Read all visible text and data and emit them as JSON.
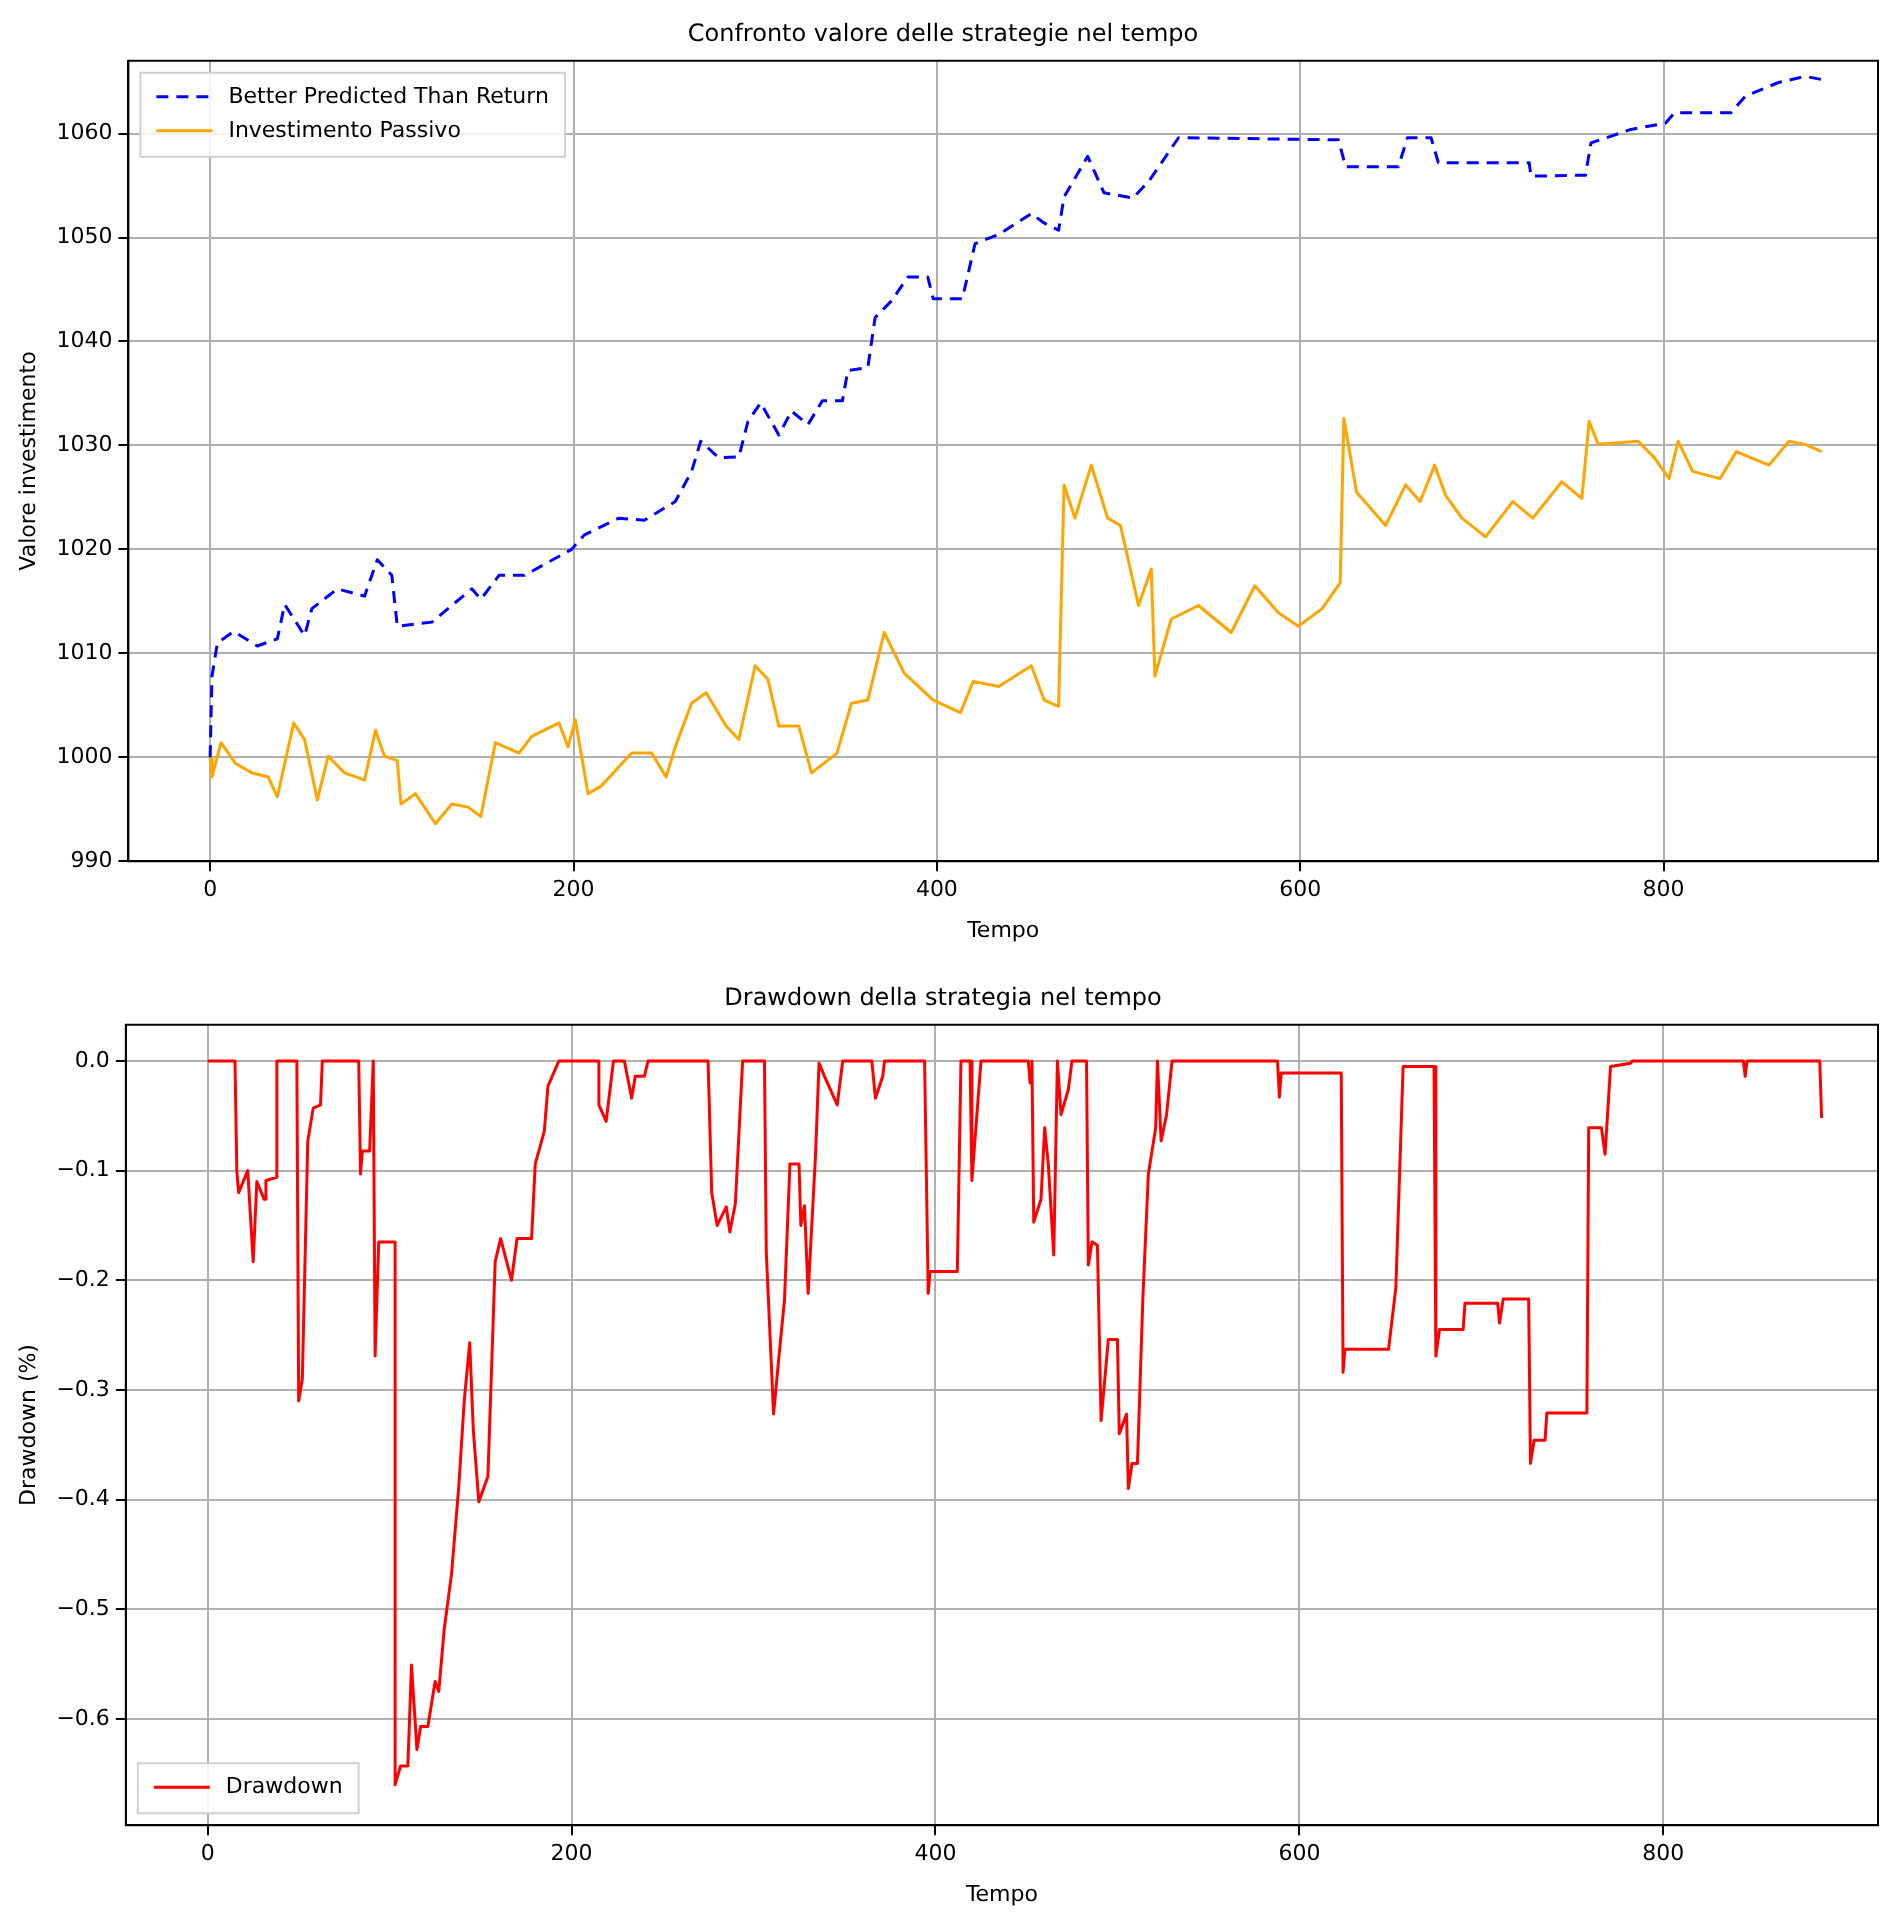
{
  "chart_data": [
    {
      "type": "line",
      "title": "Confronto valore delle strategie nel tempo",
      "xlabel": "Tempo",
      "ylabel": "Valore investimento",
      "xlim": [
        -45,
        918
      ],
      "xticks": [
        0,
        200,
        400,
        600,
        800
      ],
      "ylim": [
        990,
        1067
      ],
      "yticks": [
        990,
        1000,
        1010,
        1020,
        1030,
        1040,
        1050,
        1060
      ],
      "grid": true,
      "legend": "top left",
      "marker": "none",
      "series": [
        {
          "name": "Better Predicted Than Return",
          "color": "#0000ff",
          "line_style": "dashed",
          "x": [
            0,
            1,
            4,
            13,
            26,
            37,
            41,
            52,
            56,
            70,
            85,
            92,
            100,
            103,
            122,
            144,
            149,
            159,
            173,
            199,
            206,
            225,
            239,
            256,
            265,
            270,
            280,
            291,
            296,
            303,
            313,
            320,
            329,
            337,
            348,
            351,
            362,
            366,
            375,
            384,
            395,
            398,
            414,
            421,
            434,
            452,
            459,
            467,
            470,
            483,
            492,
            508,
            517,
            533,
            621,
            625,
            654,
            659,
            672,
            676,
            726,
            727,
            757,
            760,
            782,
            801,
            806,
            837,
            845,
            863,
            878,
            887
          ],
          "values": [
            1000,
            1007.8,
            1011,
            1012.1,
            1010.7,
            1011.4,
            1014.7,
            1011.7,
            1014.3,
            1016.2,
            1015.5,
            1019,
            1017.5,
            1012.6,
            1013,
            1016.2,
            1015.2,
            1017.5,
            1017.5,
            1020,
            1021.4,
            1023,
            1022.8,
            1024.6,
            1027.5,
            1030.4,
            1028.8,
            1028.9,
            1032.3,
            1034.1,
            1031,
            1033.3,
            1032,
            1034.3,
            1034.3,
            1037.2,
            1037.5,
            1042.3,
            1043.9,
            1046.2,
            1046.2,
            1044.1,
            1044.1,
            1049.4,
            1050.3,
            1052.3,
            1051.4,
            1050.7,
            1053.9,
            1057.8,
            1054.3,
            1053.8,
            1055.5,
            1059.6,
            1059.4,
            1056.8,
            1056.8,
            1059.6,
            1059.6,
            1057.2,
            1057.2,
            1055.9,
            1056,
            1059.1,
            1060.4,
            1061,
            1062,
            1062,
            1063.6,
            1064.9,
            1065.5,
            1065.2
          ]
        },
        {
          "name": "Investimento Passivo",
          "color": "#ffa500",
          "line_style": "solid",
          "x": [
            0,
            1,
            6,
            14,
            23,
            32,
            37,
            46,
            52,
            59,
            65,
            74,
            85,
            91,
            96,
            103,
            105,
            113,
            124,
            133,
            142,
            149,
            157,
            170,
            177,
            192,
            197,
            201,
            208,
            215,
            232,
            243,
            251,
            256,
            265,
            273,
            284,
            291,
            300,
            307,
            313,
            324,
            331,
            345,
            353,
            362,
            371,
            382,
            398,
            413,
            420,
            434,
            452,
            459,
            467,
            470,
            476,
            485,
            494,
            501,
            511,
            518,
            520,
            529,
            544,
            562,
            575,
            588,
            599,
            612,
            622,
            624,
            631,
            647,
            658,
            666,
            674,
            680,
            689,
            702,
            717,
            728,
            744,
            755,
            759,
            764,
            786,
            795,
            803,
            808,
            816,
            831,
            840,
            858,
            869,
            878,
            887
          ],
          "values": [
            1000,
            998.1,
            1001.4,
            999.4,
            998.5,
            998.1,
            996.2,
            1003.3,
            1001.7,
            995.9,
            1000.1,
            998.5,
            997.8,
            1002.6,
            1000.1,
            999.7,
            995.5,
            996.5,
            993.6,
            995.5,
            995.2,
            994.3,
            1001.4,
            1000.4,
            1002,
            1003.3,
            1001,
            1003.6,
            996.5,
            997.2,
            1000.4,
            1000.4,
            998.1,
            1001,
            1005.2,
            1006.2,
            1003,
            1001.7,
            1008.8,
            1007.5,
            1003,
            1003,
            998.5,
            1000.4,
            1005.2,
            1005.5,
            1012,
            1008.1,
            1005.5,
            1004.3,
            1007.3,
            1006.8,
            1008.8,
            1005.5,
            1004.9,
            1026.2,
            1023,
            1028.1,
            1023,
            1022.3,
            1014.6,
            1018.1,
            1007.8,
            1013.3,
            1014.6,
            1012,
            1016.5,
            1013.9,
            1012.6,
            1014.3,
            1016.8,
            1032.6,
            1025.5,
            1022.3,
            1026.2,
            1024.6,
            1028.1,
            1025.2,
            1023,
            1021.2,
            1024.6,
            1023,
            1026.5,
            1024.9,
            1032.3,
            1030.1,
            1030.4,
            1028.8,
            1026.8,
            1030.4,
            1027.5,
            1026.8,
            1029.4,
            1028.1,
            1030.4,
            1030.1,
            1029.4
          ]
        }
      ]
    },
    {
      "type": "line",
      "title": "Drawdown della strategia nel tempo",
      "xlabel": "Tempo",
      "ylabel": "Drawdown (%)",
      "xlim": [
        -45,
        918
      ],
      "xticks": [
        0,
        200,
        400,
        600,
        800
      ],
      "ylim": [
        -0.697,
        0.033
      ],
      "yticks": [
        {
          "value": -0.6,
          "label": "−0.6"
        },
        {
          "value": -0.5,
          "label": "−0.5"
        },
        {
          "value": -0.4,
          "label": "−0.4"
        },
        {
          "value": -0.3,
          "label": "−0.3"
        },
        {
          "value": -0.2,
          "label": "−0.2"
        },
        {
          "value": -0.1,
          "label": "−0.1"
        },
        {
          "value": 0,
          "label": "0.0"
        }
      ],
      "grid": true,
      "legend": "bottom left",
      "marker": "none",
      "series": [
        {
          "name": "Drawdown",
          "color": "#ff0000",
          "line_style": "solid",
          "x": [
            0,
            15,
            16,
            17,
            22,
            25,
            27,
            31,
            32,
            38,
            38,
            49,
            50,
            52,
            55,
            58,
            62,
            63,
            83,
            84,
            85,
            89,
            91,
            92,
            94,
            103,
            103,
            106,
            110,
            112,
            115,
            117,
            121,
            125,
            127,
            130,
            134,
            138,
            141,
            144,
            146,
            149,
            154,
            158,
            161,
            167,
            170,
            178,
            180,
            185,
            187,
            193,
            215,
            215,
            219,
            223,
            229,
            233,
            235,
            240,
            242,
            275,
            277,
            280,
            285,
            287,
            290,
            294,
            306,
            307,
            311,
            314,
            317,
            320,
            325,
            326,
            328,
            330,
            334,
            336,
            339,
            346,
            349,
            365,
            367,
            371,
            372,
            394,
            396,
            397,
            412,
            414,
            419,
            420,
            425,
            451,
            452,
            453,
            454,
            458,
            460,
            462,
            465,
            467,
            469,
            473,
            475,
            483,
            484,
            486,
            489,
            491,
            495,
            500,
            501,
            505,
            506,
            508,
            511,
            514,
            517,
            521,
            522,
            524,
            527,
            530,
            588,
            589,
            590,
            623,
            624,
            625,
            649,
            653,
            657,
            674,
            675,
            677,
            690,
            691,
            709,
            710,
            712,
            726,
            727,
            729,
            735,
            736,
            758,
            759,
            766,
            768,
            771,
            782,
            783,
            844,
            845,
            846,
            886,
            887
          ],
          "values": [
            0,
            0,
            -0.1,
            -0.12,
            -0.1,
            -0.183,
            -0.11,
            -0.126,
            -0.109,
            -0.106,
            0,
            0,
            -0.31,
            -0.29,
            -0.073,
            -0.043,
            -0.04,
            0,
            0,
            -0.103,
            -0.082,
            -0.082,
            0,
            -0.269,
            -0.165,
            -0.165,
            -0.66,
            -0.643,
            -0.643,
            -0.551,
            -0.628,
            -0.607,
            -0.607,
            -0.566,
            -0.575,
            -0.518,
            -0.468,
            -0.388,
            -0.31,
            -0.257,
            -0.337,
            -0.402,
            -0.379,
            -0.183,
            -0.162,
            -0.2,
            -0.162,
            -0.162,
            -0.094,
            -0.064,
            -0.023,
            0,
            0,
            -0.04,
            -0.055,
            0,
            0,
            -0.034,
            -0.014,
            -0.014,
            0,
            0,
            -0.12,
            -0.15,
            -0.133,
            -0.156,
            -0.13,
            0,
            0,
            -0.174,
            -0.322,
            -0.269,
            -0.218,
            -0.094,
            -0.094,
            -0.15,
            -0.132,
            -0.212,
            -0.088,
            -0.002,
            -0.014,
            -0.04,
            0,
            0,
            -0.034,
            -0.014,
            0,
            0,
            -0.212,
            -0.192,
            -0.192,
            0,
            0,
            -0.109,
            0,
            0,
            -0.02,
            0,
            -0.147,
            -0.126,
            -0.061,
            -0.094,
            -0.177,
            0,
            -0.049,
            -0.026,
            0,
            0,
            -0.186,
            -0.165,
            -0.168,
            -0.328,
            -0.254,
            -0.254,
            -0.34,
            -0.322,
            -0.39,
            -0.367,
            -0.367,
            -0.215,
            -0.103,
            -0.061,
            0,
            -0.073,
            -0.049,
            0,
            0,
            -0.033,
            -0.011,
            -0.011,
            -0.284,
            -0.263,
            -0.263,
            -0.207,
            -0.005,
            -0.005,
            -0.269,
            -0.245,
            -0.245,
            -0.221,
            -0.221,
            -0.239,
            -0.217,
            -0.217,
            -0.367,
            -0.346,
            -0.346,
            -0.321,
            -0.321,
            -0.061,
            -0.061,
            -0.085,
            -0.005,
            -0.002,
            0,
            0,
            -0.014,
            0,
            0,
            -0.052
          ]
        }
      ]
    }
  ]
}
